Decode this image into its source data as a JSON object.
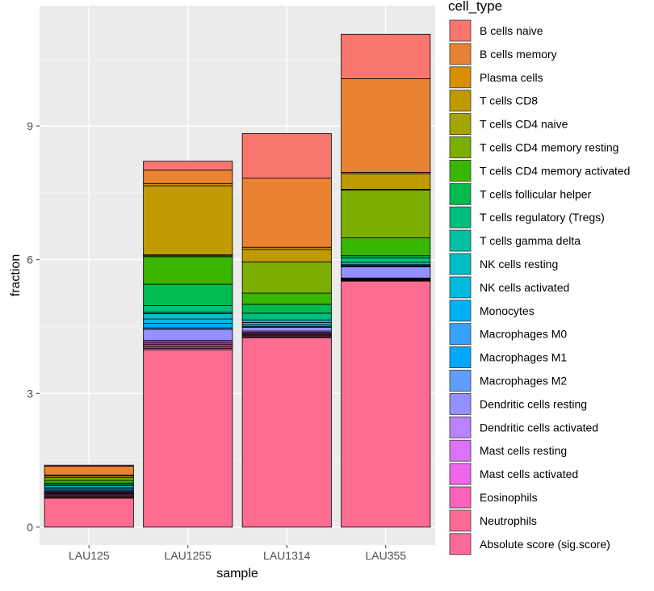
{
  "chart_data": {
    "type": "bar",
    "stacked": true,
    "xlabel": "sample",
    "ylabel": "fraction",
    "legend_title": "cell_type",
    "legend_position": "right",
    "grid": true,
    "ylim": [
      -0.4,
      11.7
    ],
    "yticks": [
      0,
      3,
      6,
      9
    ],
    "categories": [
      "LAU125",
      "LAU1255",
      "LAU1314",
      "LAU355"
    ],
    "series": [
      {
        "name": "B cells naive",
        "color": "#F8766D",
        "values": [
          0.02,
          0.2,
          1.0,
          1.0
        ]
      },
      {
        "name": "B cells memory",
        "color": "#EA8331",
        "values": [
          0.2,
          0.3,
          1.55,
          2.1
        ]
      },
      {
        "name": "Plasma cells",
        "color": "#D89000",
        "values": [
          0.02,
          0.05,
          0.05,
          0.03
        ]
      },
      {
        "name": "T cells CD8",
        "color": "#C09B00",
        "values": [
          0.04,
          1.55,
          0.28,
          0.35
        ]
      },
      {
        "name": "T cells CD4 naive",
        "color": "#A3A500",
        "values": [
          0.0,
          0.02,
          0.0,
          0.02
        ]
      },
      {
        "name": "T cells CD4 memory resting",
        "color": "#7CAE00",
        "values": [
          0.06,
          0.02,
          0.7,
          1.07
        ]
      },
      {
        "name": "T cells CD4 memory activated",
        "color": "#39B600",
        "values": [
          0.06,
          0.62,
          0.25,
          0.4
        ]
      },
      {
        "name": "T cells follicular helper",
        "color": "#00BB4E",
        "values": [
          0.03,
          0.48,
          0.2,
          0.05
        ]
      },
      {
        "name": "T cells regulatory (Tregs)",
        "color": "#00BF7D",
        "values": [
          0.03,
          0.15,
          0.15,
          0.1
        ]
      },
      {
        "name": "T cells gamma delta",
        "color": "#00C1A3",
        "values": [
          0.0,
          0.03,
          0.0,
          0.0
        ]
      },
      {
        "name": "NK cells resting",
        "color": "#00BFC4",
        "values": [
          0.04,
          0.12,
          0.06,
          0.05
        ]
      },
      {
        "name": "NK cells activated",
        "color": "#00BAE0",
        "values": [
          0.03,
          0.1,
          0.05,
          0.02
        ]
      },
      {
        "name": "Monocytes",
        "color": "#00B0F6",
        "values": [
          0.03,
          0.1,
          0.04,
          0.02
        ]
      },
      {
        "name": "Macrophages M0",
        "color": "#35A2FF",
        "values": [
          0.02,
          0.03,
          0.02,
          0.01
        ]
      },
      {
        "name": "Macrophages M1",
        "color": "#9590FF",
        "values": [
          0.02,
          0.25,
          0.08,
          0.25
        ]
      },
      {
        "name": "Macrophages M2",
        "color": "#C77CFF",
        "values": [
          0.02,
          0.03,
          0.03,
          0.01
        ]
      },
      {
        "name": "Dendritic cells resting",
        "color": "#E76BF3",
        "values": [
          0.02,
          0.03,
          0.02,
          0.01
        ]
      },
      {
        "name": "Dendritic cells activated",
        "color": "#FA62DB",
        "values": [
          0.02,
          0.03,
          0.02,
          0.01
        ]
      },
      {
        "name": "Mast cells resting",
        "color": "#FF62BC",
        "values": [
          0.02,
          0.03,
          0.02,
          0.01
        ]
      },
      {
        "name": "Mast cells activated",
        "color": "#FF6C91",
        "values": [
          0.02,
          0.03,
          0.02,
          0.01
        ]
      },
      {
        "name": "Eosinophils",
        "color": "#FF6A98",
        "values": [
          0.02,
          0.03,
          0.02,
          0.01
        ]
      },
      {
        "name": "Neutrophils",
        "color": "#FF62BC",
        "values": [
          0.02,
          0.03,
          0.02,
          0.01
        ]
      },
      {
        "name": "Absolute score (sig.score)",
        "color": "#FF6C91",
        "values": [
          0.65,
          3.98,
          4.25,
          5.52
        ]
      }
    ],
    "legend_colors": [
      "#F8766D",
      "#EA8331",
      "#D89000",
      "#C09B00",
      "#A3A500",
      "#7CAE00",
      "#39B600",
      "#00BB4E",
      "#00BF7D",
      "#00C1A3",
      "#00BFC4",
      "#00BAE0",
      "#00B0F6",
      "#35A2FF",
      "#00A9FF",
      "#619CFF",
      "#9590FF",
      "#B983FF",
      "#DB72FB",
      "#F066EA",
      "#FF62BC",
      "#FF6C91",
      "#FF6A98"
    ]
  }
}
